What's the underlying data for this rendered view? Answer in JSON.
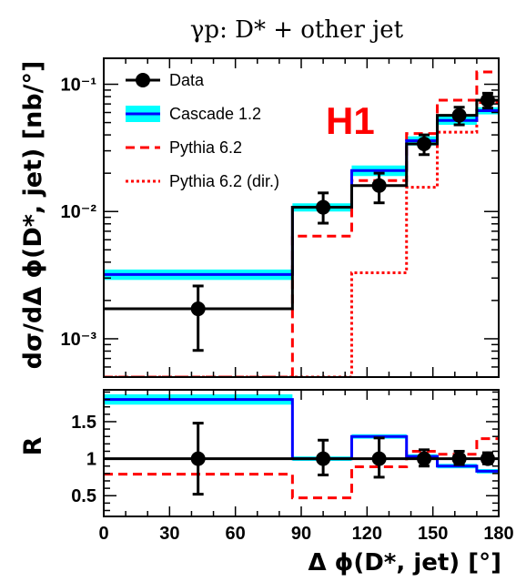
{
  "chart_data": [
    {
      "type": "line",
      "title": "γp:  D* + other jet",
      "ylabel": "dσ/dΔ ϕ(D*, jet)  [nb/°]",
      "xlabel": "",
      "x_range": [
        0,
        180
      ],
      "y_scale": "log",
      "y_range": [
        0.0005,
        0.16
      ],
      "y_tick_labels": [
        "10⁻³",
        "10⁻²",
        "10⁻¹"
      ],
      "y_tick_values": [
        0.001,
        0.01,
        0.1
      ],
      "bin_edges": [
        0,
        86,
        113,
        138,
        152,
        170,
        180
      ],
      "annotation": "H1",
      "annotation_color": "#ff0000",
      "legend_position": "top-left",
      "series": [
        {
          "name": "Data",
          "style": "markers-errorbars",
          "color": "#000000",
          "x": [
            43,
            100,
            125.5,
            146,
            162,
            175
          ],
          "y": [
            0.00172,
            0.0108,
            0.016,
            0.034,
            0.057,
            0.075
          ],
          "y_low": [
            0.00081,
            0.0081,
            0.0117,
            0.028,
            0.048,
            0.065
          ],
          "y_high": [
            0.0026,
            0.014,
            0.02,
            0.04,
            0.066,
            0.085
          ],
          "bin_values": [
            0.00172,
            0.0108,
            0.016,
            0.034,
            0.057,
            0.075
          ]
        },
        {
          "name": "Cascade 1.2",
          "style": "solid-band",
          "color": "#0000ff",
          "band_color": "#00ffff",
          "bin_values": [
            0.0032,
            0.0108,
            0.021,
            0.036,
            0.052,
            0.062
          ],
          "band_low": [
            0.0029,
            0.01,
            0.019,
            0.033,
            0.048,
            0.058
          ],
          "band_high": [
            0.0035,
            0.0116,
            0.023,
            0.039,
            0.056,
            0.066
          ]
        },
        {
          "name": "Pythia 6.2",
          "style": "dashed",
          "color": "#ff0000",
          "bin_values": [
            0.0005,
            0.0064,
            0.0175,
            0.041,
            0.075,
            0.125
          ]
        },
        {
          "name": "Pythia 6.2 (dir.)",
          "style": "dotted",
          "color": "#ff0000",
          "bin_values": [
            0.0005,
            0.0005,
            0.0033,
            0.0155,
            0.042,
            0.072
          ]
        }
      ]
    },
    {
      "type": "line",
      "title": "",
      "ylabel": "R",
      "xlabel": "Δ ϕ(D*, jet) [°]",
      "x_range": [
        0,
        180
      ],
      "y_range": [
        0.22,
        1.93
      ],
      "x_tick_labels": [
        "0",
        "30",
        "60",
        "90",
        "120",
        "150",
        "180"
      ],
      "x_tick_values": [
        0,
        30,
        60,
        90,
        120,
        150,
        180
      ],
      "y_tick_labels": [
        "0.5",
        "1",
        "1.5"
      ],
      "y_tick_values": [
        0.5,
        1.0,
        1.5
      ],
      "bin_edges": [
        0,
        86,
        113,
        138,
        152,
        170,
        180
      ],
      "series": [
        {
          "name": "Data",
          "style": "markers-errorbars",
          "color": "#000000",
          "x": [
            43,
            100,
            125.5,
            146,
            162,
            175
          ],
          "y": [
            1.0,
            1.0,
            1.0,
            1.0,
            1.0,
            1.0
          ],
          "y_low": [
            0.52,
            0.78,
            0.75,
            0.9,
            0.92,
            0.93
          ],
          "y_high": [
            1.48,
            1.25,
            1.28,
            1.12,
            1.1,
            1.08
          ],
          "bin_values": [
            1.0,
            1.0,
            1.0,
            1.0,
            1.0,
            1.0
          ]
        },
        {
          "name": "Cascade 1.2",
          "style": "solid-band",
          "color": "#0000ff",
          "band_color": "#00ffff",
          "bin_values": [
            1.8,
            1.0,
            1.3,
            1.03,
            0.9,
            0.83
          ],
          "band_low": [
            1.73,
            0.97,
            1.27,
            1.0,
            0.87,
            0.8
          ],
          "band_high": [
            1.87,
            1.03,
            1.33,
            1.06,
            0.93,
            0.86
          ]
        },
        {
          "name": "Pythia 6.2",
          "style": "dashed",
          "color": "#ff0000",
          "bin_values": [
            0.79,
            0.47,
            0.89,
            1.1,
            1.06,
            1.27
          ]
        }
      ]
    }
  ]
}
